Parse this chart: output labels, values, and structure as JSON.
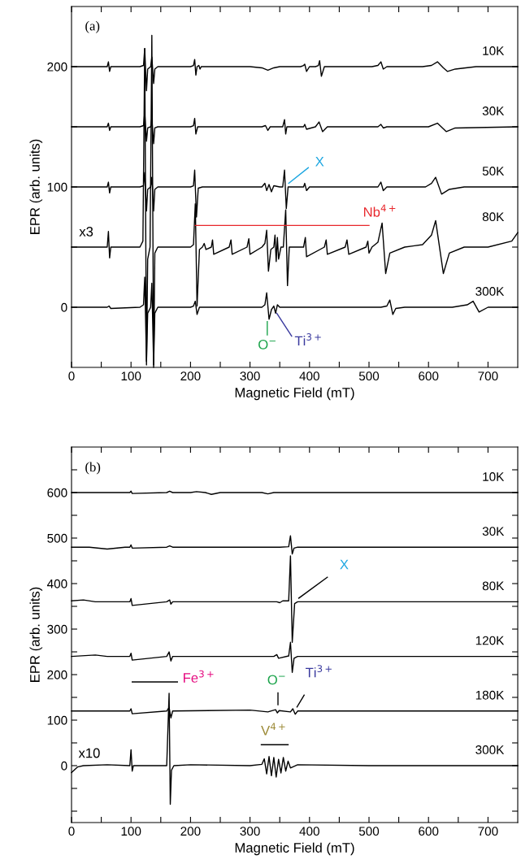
{
  "chart_data": [
    {
      "type": "line",
      "xlabel": "Magnetic Field (mT)",
      "ylabel": "EPR (arb. units)",
      "xlim": [
        0,
        750
      ],
      "ylim": [
        -50,
        250
      ],
      "xticks": [
        0,
        {
          "value": 50,
          "label": null
        },
        100,
        {
          "value": 150,
          "label": null
        },
        200,
        {
          "value": 250,
          "label": null
        },
        300,
        {
          "value": 350,
          "label": null
        },
        400,
        {
          "value": 450,
          "label": null
        },
        500,
        {
          "value": 550,
          "label": null
        },
        600,
        {
          "value": 650,
          "label": null
        },
        700
      ],
      "yticks": [
        0,
        {
          "value": 50,
          "label": null
        },
        100,
        {
          "value": 150,
          "label": null
        },
        200
      ],
      "series": [
        {
          "name": "10K",
          "color": "#000000",
          "x": [
            0,
            55,
            60,
            62,
            64,
            66,
            115,
            121,
            123,
            126,
            128,
            133,
            135,
            138,
            140,
            145,
            200,
            205,
            207,
            209,
            211,
            214,
            216,
            218,
            225,
            300,
            320,
            330,
            340,
            350,
            385,
            390,
            392,
            395,
            400,
            410,
            415,
            417,
            420,
            425,
            440,
            505,
            515,
            520,
            524,
            530,
            590,
            605,
            615,
            625,
            632,
            645,
            680,
            750
          ],
          "values": [
            200,
            200,
            200,
            204,
            196,
            200,
            200,
            201,
            215,
            180,
            198,
            200,
            208,
            186,
            198,
            200,
            200,
            201,
            206,
            193,
            200,
            201,
            198,
            200,
            200,
            200,
            199,
            197,
            199,
            200,
            200,
            201,
            202,
            196,
            200,
            200,
            201,
            205,
            192,
            200,
            200,
            200,
            201,
            204,
            198,
            200,
            200,
            201,
            204,
            199,
            196,
            198,
            200,
            200
          ]
        },
        {
          "name": "30K",
          "color": "#000000",
          "x": [
            0,
            60,
            62,
            64,
            66,
            115,
            121,
            123,
            126,
            128,
            133,
            135,
            138,
            140,
            145,
            200,
            205,
            207,
            209,
            212,
            320,
            326,
            330,
            334,
            355,
            358,
            360,
            362,
            365,
            390,
            392,
            395,
            410,
            416,
            422,
            430,
            515,
            520,
            524,
            530,
            600,
            615,
            630,
            645,
            750
          ],
          "values": [
            150,
            150,
            153,
            147,
            150,
            150,
            151,
            162,
            138,
            149,
            150,
            157,
            136,
            149,
            150,
            150,
            151,
            157,
            144,
            150,
            150,
            151,
            147,
            150,
            150,
            156,
            144,
            150,
            150,
            150,
            152,
            148,
            150,
            154,
            146,
            150,
            150,
            152,
            149,
            150,
            150,
            153,
            146,
            149,
            150
          ]
        },
        {
          "name": "50K",
          "color": "#000000",
          "x": [
            0,
            60,
            62,
            64,
            66,
            115,
            121,
            123,
            126,
            128,
            133,
            135,
            138,
            140,
            145,
            200,
            205,
            207,
            210,
            213,
            220,
            320,
            325,
            328,
            332,
            336,
            340,
            350,
            355,
            358,
            361,
            364,
            370,
            390,
            392,
            395,
            400,
            515,
            520,
            524,
            530,
            595,
            605,
            612,
            622,
            635,
            660,
            750
          ],
          "values": [
            100,
            100,
            104,
            95,
            100,
            100,
            101,
            112,
            80,
            98,
            100,
            108,
            80,
            98,
            100,
            100,
            101,
            114,
            75,
            99,
            100,
            100,
            103,
            97,
            102,
            96,
            101,
            100,
            100,
            114,
            82,
            100,
            100,
            100,
            103,
            97,
            100,
            100,
            104,
            97,
            100,
            100,
            103,
            108,
            94,
            98,
            100,
            100
          ]
        },
        {
          "name": "80K",
          "color": "#000000",
          "x": [
            0,
            40,
            60,
            62,
            64,
            66,
            115,
            120,
            123,
            126,
            128,
            132,
            135,
            138,
            140,
            145,
            200,
            205,
            208,
            211,
            215,
            220,
            223,
            226,
            235,
            237,
            239,
            265,
            268,
            270,
            295,
            298,
            300,
            320,
            325,
            328,
            331,
            335,
            340,
            342,
            344,
            346,
            348,
            352,
            356,
            360,
            363,
            366,
            370,
            390,
            393,
            395,
            425,
            428,
            430,
            460,
            463,
            466,
            495,
            498,
            500,
            505,
            515,
            522,
            528,
            535,
            560,
            590,
            605,
            612,
            625,
            635,
            660,
            700,
            740,
            750
          ],
          "values": [
            50,
            50,
            50,
            63,
            41,
            50,
            50,
            55,
            215,
            -48,
            40,
            50,
            226,
            -50,
            45,
            50,
            50,
            52,
            86,
            1,
            48,
            50,
            53,
            48,
            50,
            56,
            44,
            50,
            56,
            44,
            50,
            57,
            44,
            50,
            53,
            64,
            30,
            48,
            50,
            60,
            38,
            58,
            40,
            50,
            50,
            81,
            18,
            50,
            50,
            50,
            58,
            42,
            50,
            56,
            44,
            50,
            56,
            44,
            50,
            55,
            45,
            50,
            54,
            70,
            28,
            45,
            50,
            52,
            60,
            72,
            28,
            45,
            50,
            50,
            55,
            62
          ]
        },
        {
          "name": "300K",
          "color": "#000000",
          "x": [
            0,
            60,
            63,
            66,
            115,
            121,
            123,
            126,
            128,
            133,
            135,
            138,
            140,
            145,
            200,
            205,
            208,
            211,
            215,
            320,
            325,
            328,
            332,
            336,
            340,
            343,
            346,
            350,
            520,
            530,
            535,
            540,
            545,
            560,
            640,
            665,
            675,
            685,
            700,
            750
          ],
          "values": [
            0,
            0,
            1,
            -1,
            0,
            2,
            25,
            -45,
            -5,
            0,
            20,
            -48,
            -5,
            0,
            0,
            1,
            5,
            -6,
            0,
            0,
            2,
            12,
            -10,
            -2,
            1,
            -5,
            2,
            0,
            0,
            1,
            6,
            -6,
            -1,
            0,
            0,
            2,
            5,
            -4,
            0,
            0
          ]
        },
        {
          "type": "line",
          "color": "#1ea7e1",
          "x": [
            365,
            398
          ],
          "values": [
            103,
            116
          ]
        },
        {
          "type": "line",
          "color": "#e8262b",
          "x": [
            208,
            500
          ],
          "values": [
            68,
            68
          ]
        },
        {
          "type": "line",
          "color": "#1aa34a",
          "x": [
            329,
            329
          ],
          "values": [
            -12,
            -23
          ]
        },
        {
          "type": "line",
          "color": "#3a3a9e",
          "x": [
            345,
            370
          ],
          "values": [
            -5,
            -24
          ]
        }
      ],
      "legend": "right",
      "annotations": [
        "(a)",
        "x3",
        "X",
        "Nb$^{4+}$",
        "O$^{−}$",
        "Ti$^{3+}$"
      ]
    },
    {
      "type": "line",
      "xlabel": "Magnetic Field (mT)",
      "ylabel": "EPR (arb. units)",
      "xlim": [
        0,
        750
      ],
      "ylim": [
        -125,
        700
      ],
      "xticks": [
        0,
        {
          "value": 50,
          "label": null
        },
        100,
        {
          "value": 150,
          "label": null
        },
        200,
        {
          "value": 250,
          "label": null
        },
        300,
        {
          "value": 350,
          "label": null
        },
        400,
        {
          "value": 450,
          "label": null
        },
        500,
        {
          "value": 550,
          "label": null
        },
        600,
        {
          "value": 650,
          "label": null
        },
        700
      ],
      "yticks": [
        {
          "value": -100,
          "label": null
        },
        {
          "value": -50,
          "label": null
        },
        0,
        {
          "value": 50,
          "label": null
        },
        100,
        {
          "value": 150,
          "label": null
        },
        200,
        {
          "value": 250,
          "label": null
        },
        300,
        {
          "value": 350,
          "label": null
        },
        400,
        {
          "value": 450,
          "label": null
        },
        500,
        {
          "value": 550,
          "label": null
        },
        600,
        {
          "value": 650,
          "label": null
        }
      ],
      "series": [
        {
          "name": "10K",
          "color": "#000000",
          "x": [
            0,
            98,
            100,
            102,
            160,
            165,
            170,
            200,
            210,
            225,
            235,
            250,
            320,
            330,
            340,
            750
          ],
          "values": [
            600,
            600,
            603,
            598,
            600,
            603,
            600,
            600,
            602,
            600,
            596,
            600,
            600,
            597,
            600,
            600
          ]
        },
        {
          "name": "30K",
          "color": "#000000",
          "x": [
            0,
            30,
            60,
            90,
            98,
            100,
            102,
            160,
            165,
            170,
            350,
            365,
            368,
            371,
            374,
            380,
            750
          ],
          "values": [
            480,
            480,
            476,
            480,
            480,
            485,
            478,
            480,
            483,
            480,
            480,
            481,
            505,
            465,
            478,
            480,
            480
          ]
        },
        {
          "name": "80K",
          "color": "#000000",
          "x": [
            0,
            20,
            40,
            60,
            98,
            100,
            102,
            160,
            165,
            167,
            170,
            345,
            350,
            355,
            365,
            368,
            371,
            375,
            380,
            750
          ],
          "values": [
            362,
            364,
            360,
            360,
            360,
            367,
            352,
            360,
            364,
            355,
            360,
            360,
            358,
            362,
            362,
            461,
            271,
            356,
            360,
            360
          ]
        },
        {
          "name": "120K",
          "color": "#000000",
          "x": [
            0,
            40,
            60,
            98,
            100,
            102,
            160,
            164,
            167,
            170,
            340,
            345,
            348,
            365,
            368,
            371,
            374,
            380,
            750
          ],
          "values": [
            240,
            243,
            240,
            240,
            247,
            232,
            240,
            250,
            230,
            240,
            240,
            244,
            236,
            241,
            271,
            205,
            236,
            240,
            240
          ]
        },
        {
          "name": "180K",
          "color": "#000000",
          "x": [
            0,
            98,
            100,
            102,
            160,
            164,
            167,
            170,
            300,
            330,
            343,
            346,
            349,
            368,
            372,
            376,
            380,
            750
          ],
          "values": [
            120,
            120,
            125,
            114,
            120,
            128,
            105,
            120,
            122,
            118,
            123,
            116,
            121,
            118,
            125,
            113,
            120,
            120
          ]
        },
        {
          "name": "300K",
          "color": "#000000",
          "x": [
            0,
            10,
            20,
            60,
            98,
            100,
            102,
            104,
            160,
            164,
            166,
            168,
            172,
            200,
            300,
            320,
            324,
            328,
            332,
            336,
            340,
            344,
            348,
            352,
            356,
            360,
            364,
            368,
            380,
            500,
            750
          ],
          "values": [
            -15,
            -3,
            0,
            2,
            0,
            35,
            -12,
            0,
            0,
            159,
            -85,
            -10,
            0,
            2,
            0,
            3,
            15,
            -18,
            20,
            -22,
            18,
            -25,
            14,
            -16,
            18,
            -12,
            10,
            -5,
            2,
            0,
            0
          ]
        },
        {
          "type": "line",
          "color": "#000000",
          "x": [
            102,
            178
          ],
          "values": [
            184,
            184
          ]
        },
        {
          "type": "line",
          "color": "#000000",
          "x": [
            347,
            347
          ],
          "values": [
            160,
            134
          ]
        },
        {
          "type": "line",
          "color": "#000000",
          "x": [
            379,
            391
          ],
          "values": [
            129,
            155
          ]
        },
        {
          "type": "line",
          "color": "#000000",
          "x": [
            382,
            430
          ],
          "values": [
            368,
            414
          ]
        },
        {
          "type": "line",
          "color": "#000000",
          "x": [
            319,
            364
          ],
          "values": [
            46,
            46
          ]
        }
      ],
      "legend": "right",
      "annotations": [
        "(b)",
        "x10",
        "X",
        "Fe$^{3+}$",
        "O$^{−}$",
        "Ti$^{3+}$",
        "V$^{4+}$"
      ]
    }
  ]
}
